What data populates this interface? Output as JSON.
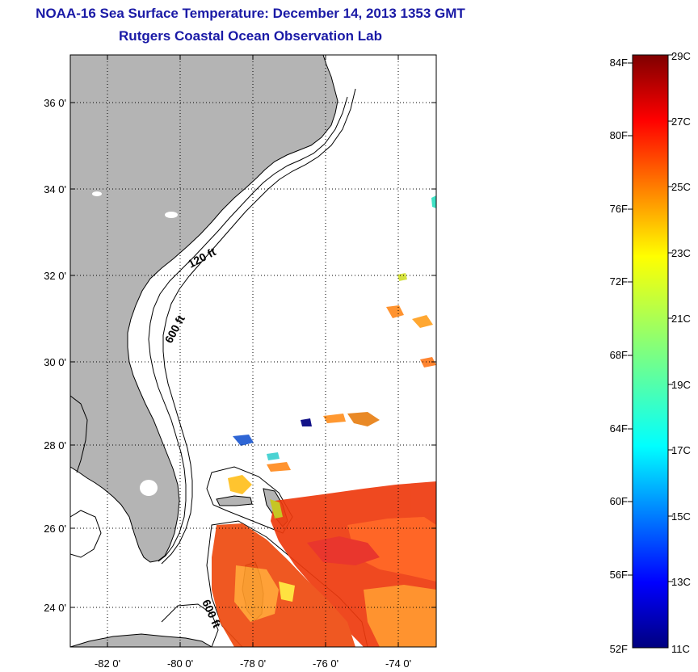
{
  "header": {
    "title": "NOAA-16 Sea Surface Temperature:  December 14, 2013 1353 GMT",
    "subtitle": "Rutgers Coastal Ocean Observation Lab"
  },
  "map": {
    "lon_ticks": [
      "-82 0'",
      "-80 0'",
      "-78 0'",
      "-76 0'",
      "-74 0'"
    ],
    "lat_ticks": [
      "36 0'",
      "34 0'",
      "32 0'",
      "30 0'",
      "28 0'",
      "26 0'",
      "24 0'"
    ],
    "isobath_labels": [
      "120 ft",
      "600 ft",
      "600 ft"
    ],
    "land_color": "#b4b4b4"
  },
  "colorbar": {
    "fahrenheit_labels": [
      "84F",
      "80F",
      "76F",
      "72F",
      "68F",
      "64F",
      "60F",
      "56F",
      "52F"
    ],
    "celsius_labels": [
      "29C",
      "27C",
      "25C",
      "23C",
      "21C",
      "19C",
      "17C",
      "15C",
      "13C",
      "11C"
    ],
    "colormap": "jet"
  }
}
